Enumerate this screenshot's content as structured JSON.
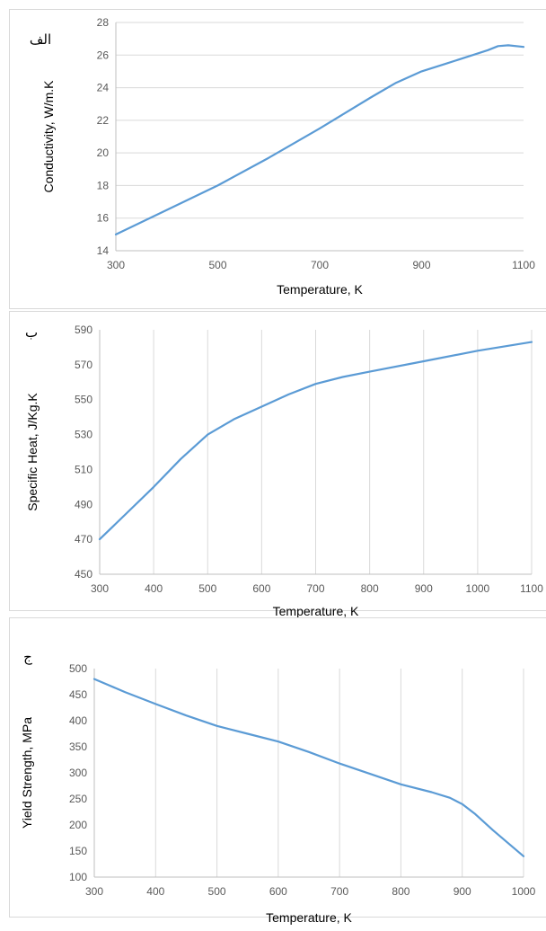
{
  "chart_data": [
    {
      "type": "line",
      "panel_label": "الف",
      "xlabel": "Temperature, K",
      "ylabel": "Conductivity, W/m.K",
      "xlim": [
        300,
        1100
      ],
      "ylim": [
        14,
        28
      ],
      "xticks": [
        300,
        500,
        700,
        900,
        1100
      ],
      "yticks": [
        14,
        16,
        18,
        20,
        22,
        24,
        26,
        28
      ],
      "grid": "horizontal",
      "color": "#5b9bd5",
      "x": [
        300,
        400,
        500,
        600,
        700,
        800,
        850,
        900,
        950,
        1000,
        1030,
        1050,
        1070,
        1100
      ],
      "y": [
        15.0,
        16.5,
        18.0,
        19.7,
        21.5,
        23.4,
        24.3,
        25.0,
        25.5,
        26.0,
        26.3,
        26.55,
        26.6,
        26.5
      ]
    },
    {
      "type": "line",
      "panel_label": "ب",
      "xlabel": "Temperature, K",
      "ylabel": "Specific Heat, J/Kg.K",
      "xlim": [
        300,
        1100
      ],
      "ylim": [
        450,
        590
      ],
      "xticks": [
        300,
        400,
        500,
        600,
        700,
        800,
        900,
        1000,
        1100
      ],
      "yticks": [
        450,
        470,
        490,
        510,
        530,
        550,
        570,
        590
      ],
      "grid": "vertical",
      "color": "#5b9bd5",
      "x": [
        300,
        350,
        400,
        450,
        500,
        550,
        600,
        650,
        700,
        750,
        800,
        900,
        1000,
        1100
      ],
      "y": [
        470,
        485,
        500,
        516,
        530,
        539,
        546,
        553,
        559,
        563,
        566,
        572,
        578,
        583
      ]
    },
    {
      "type": "line",
      "panel_label": "ج",
      "xlabel": "Temperature, K",
      "ylabel": "Yield Strength, MPa",
      "xlim": [
        300,
        1000
      ],
      "ylim": [
        100,
        500
      ],
      "xticks": [
        300,
        400,
        500,
        600,
        700,
        800,
        900,
        1000
      ],
      "yticks": [
        100,
        150,
        200,
        250,
        300,
        350,
        400,
        450,
        500
      ],
      "grid": "vertical",
      "color": "#5b9bd5",
      "x": [
        300,
        350,
        400,
        450,
        500,
        550,
        600,
        650,
        700,
        750,
        800,
        850,
        880,
        900,
        920,
        950,
        1000
      ],
      "y": [
        480,
        455,
        432,
        410,
        390,
        375,
        360,
        340,
        318,
        298,
        278,
        263,
        252,
        240,
        222,
        190,
        140
      ]
    }
  ]
}
